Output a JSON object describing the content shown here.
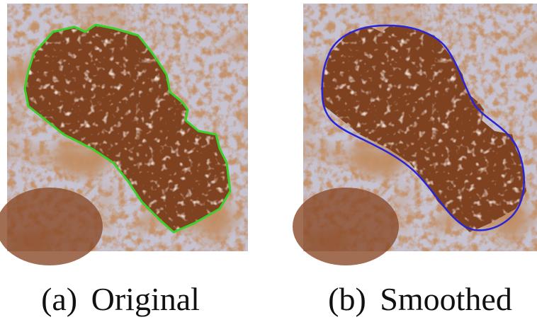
{
  "figure": {
    "panels": [
      {
        "label": "(a)",
        "caption": "Original"
      },
      {
        "label": "(b)",
        "caption": "Smoothed"
      }
    ]
  }
}
